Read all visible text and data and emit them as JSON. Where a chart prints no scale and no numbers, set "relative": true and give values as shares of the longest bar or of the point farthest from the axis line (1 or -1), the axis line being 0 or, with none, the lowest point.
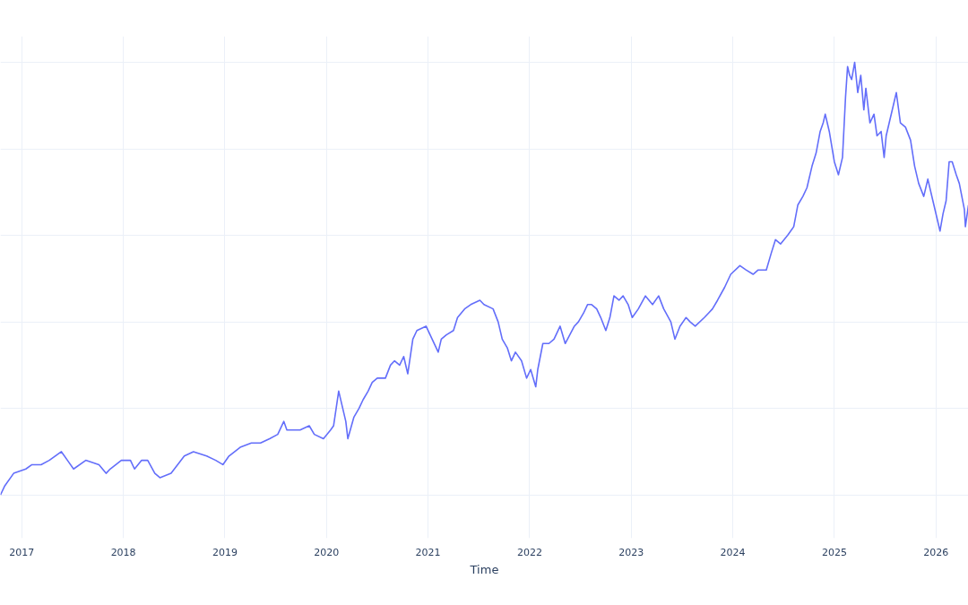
{
  "chart_data": {
    "type": "line",
    "xlabel": "Time",
    "relative": true,
    "grid": true,
    "xlim": [
      2016.79,
      2026.32
    ],
    "xticks": [
      2017,
      2018,
      2019,
      2020,
      2021,
      2022,
      2023,
      2024,
      2025,
      2026
    ],
    "x": [
      2016.79,
      2016.83,
      2016.92,
      2017.04,
      2017.1,
      2017.19,
      2017.27,
      2017.39,
      2017.45,
      2017.51,
      2017.63,
      2017.76,
      2017.83,
      2017.87,
      2017.98,
      2018.07,
      2018.11,
      2018.18,
      2018.24,
      2018.31,
      2018.36,
      2018.47,
      2018.6,
      2018.69,
      2018.82,
      2018.91,
      2018.98,
      2019.04,
      2019.15,
      2019.26,
      2019.35,
      2019.44,
      2019.52,
      2019.58,
      2019.61,
      2019.74,
      2019.83,
      2019.88,
      2019.97,
      2020.04,
      2020.07,
      2020.12,
      2020.19,
      2020.21,
      2020.27,
      2020.32,
      2020.36,
      2020.41,
      2020.45,
      2020.5,
      2020.58,
      2020.63,
      2020.67,
      2020.72,
      2020.76,
      2020.8,
      2020.85,
      2020.89,
      2020.98,
      2021.04,
      2021.1,
      2021.13,
      2021.18,
      2021.25,
      2021.29,
      2021.36,
      2021.42,
      2021.51,
      2021.55,
      2021.64,
      2021.69,
      2021.73,
      2021.78,
      2021.82,
      2021.86,
      2021.92,
      2021.97,
      2022.01,
      2022.06,
      2022.08,
      2022.13,
      2022.19,
      2022.24,
      2022.3,
      2022.35,
      2022.44,
      2022.48,
      2022.53,
      2022.57,
      2022.61,
      2022.66,
      2022.7,
      2022.75,
      2022.79,
      2022.83,
      2022.88,
      2022.92,
      2022.97,
      2023.01,
      2023.07,
      2023.14,
      2023.21,
      2023.27,
      2023.32,
      2023.39,
      2023.43,
      2023.48,
      2023.54,
      2023.58,
      2023.63,
      2023.72,
      2023.76,
      2023.8,
      2023.85,
      2023.92,
      2023.98,
      2024.07,
      2024.13,
      2024.2,
      2024.25,
      2024.33,
      2024.38,
      2024.42,
      2024.47,
      2024.54,
      2024.6,
      2024.64,
      2024.69,
      2024.73,
      2024.78,
      2024.82,
      2024.86,
      2024.89,
      2024.91,
      2024.95,
      2025.0,
      2025.04,
      2025.08,
      2025.11,
      2025.13,
      2025.15,
      2025.17,
      2025.2,
      2025.23,
      2025.26,
      2025.29,
      2025.31,
      2025.35,
      2025.39,
      2025.42,
      2025.46,
      2025.49,
      2025.51,
      2025.54,
      2025.58,
      2025.61,
      2025.65,
      2025.7,
      2025.75,
      2025.79,
      2025.83,
      2025.88,
      2025.92,
      2025.97,
      2026.01,
      2026.04,
      2026.07,
      2026.1,
      2026.13,
      2026.16,
      2026.2,
      2026.23,
      2026.28,
      2026.29,
      2026.32
    ],
    "series": [
      {
        "color": "#636efa",
        "values": [
          0,
          0.02,
          0.05,
          0.06,
          0.07,
          0.07,
          0.08,
          0.1,
          0.08,
          0.06,
          0.08,
          0.07,
          0.05,
          0.06,
          0.08,
          0.08,
          0.06,
          0.08,
          0.08,
          0.05,
          0.04,
          0.05,
          0.09,
          0.1,
          0.09,
          0.08,
          0.07,
          0.09,
          0.11,
          0.12,
          0.12,
          0.13,
          0.14,
          0.17,
          0.15,
          0.15,
          0.16,
          0.14,
          0.13,
          0.15,
          0.16,
          0.24,
          0.17,
          0.13,
          0.18,
          0.2,
          0.22,
          0.24,
          0.26,
          0.27,
          0.27,
          0.3,
          0.31,
          0.3,
          0.32,
          0.28,
          0.36,
          0.38,
          0.39,
          0.36,
          0.33,
          0.36,
          0.37,
          0.38,
          0.41,
          0.43,
          0.44,
          0.45,
          0.44,
          0.43,
          0.4,
          0.36,
          0.34,
          0.31,
          0.33,
          0.31,
          0.27,
          0.29,
          0.25,
          0.29,
          0.35,
          0.35,
          0.36,
          0.39,
          0.35,
          0.39,
          0.4,
          0.42,
          0.44,
          0.44,
          0.43,
          0.41,
          0.38,
          0.41,
          0.46,
          0.45,
          0.46,
          0.44,
          0.41,
          0.43,
          0.46,
          0.44,
          0.46,
          0.43,
          0.4,
          0.36,
          0.39,
          0.41,
          0.4,
          0.39,
          0.41,
          0.42,
          0.43,
          0.45,
          0.48,
          0.51,
          0.53,
          0.52,
          0.51,
          0.52,
          0.52,
          0.56,
          0.59,
          0.58,
          0.6,
          0.62,
          0.67,
          0.69,
          0.71,
          0.76,
          0.79,
          0.84,
          0.86,
          0.88,
          0.84,
          0.77,
          0.74,
          0.78,
          0.92,
          0.99,
          0.97,
          0.96,
          1.0,
          0.93,
          0.97,
          0.89,
          0.94,
          0.86,
          0.88,
          0.83,
          0.84,
          0.78,
          0.83,
          0.86,
          0.9,
          0.93,
          0.86,
          0.85,
          0.82,
          0.76,
          0.72,
          0.69,
          0.73,
          0.68,
          0.64,
          0.61,
          0.65,
          0.68,
          0.77,
          0.77,
          0.74,
          0.72,
          0.66,
          0.62,
          0.67
        ]
      }
    ]
  }
}
